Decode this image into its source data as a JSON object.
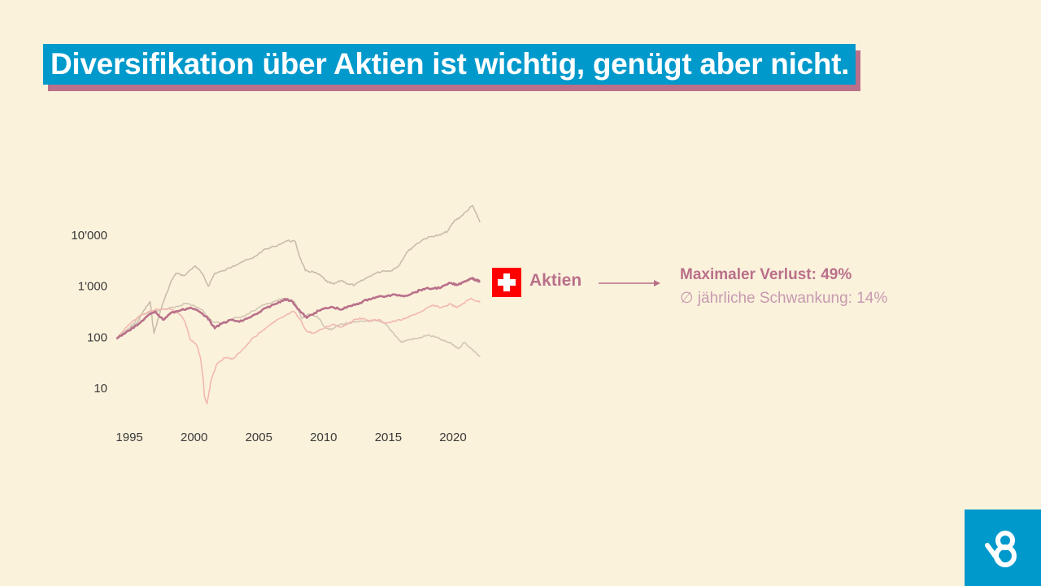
{
  "slide": {
    "title": "Diversifikation über Aktien ist wichtig, genügt aber nicht.",
    "series_label": "Aktien",
    "stat_max_loss": "Maximaler Verlust: 49%",
    "stat_volatility": "∅ jährliche Schwankung: 14%"
  },
  "colors": {
    "background": "#fbf2dc",
    "title_bg": "#0099cc",
    "accent": "#b9708a",
    "grey_series": "#c9bdaa",
    "pink_series": "#f2b8b0",
    "flag_red": "#ff0000",
    "logo_bg": "#0099cc"
  },
  "icons": {
    "flag": "swiss-flag-icon",
    "logo": "brand-logo-icon",
    "arrow": "arrow-right-icon"
  },
  "chart_data": {
    "type": "line",
    "y_scale": "log",
    "ylim": [
      3,
      50000
    ],
    "xlim": [
      1993.8,
      2022.2
    ],
    "y_ticks": [
      10,
      100,
      1000,
      10000
    ],
    "y_tick_labels": [
      "10",
      "100",
      "1'000",
      "10'000"
    ],
    "x_ticks": [
      1995,
      2000,
      2005,
      2010,
      2015,
      2020
    ],
    "x_tick_labels": [
      "1995",
      "2000",
      "2005",
      "2010",
      "2015",
      "2020"
    ],
    "grid": false,
    "legend": "right, single highlighted series label",
    "series": [
      {
        "name": "",
        "highlight": false,
        "color": "#c9bdaa",
        "points": [
          [
            1994.0,
            95
          ],
          [
            1995.0,
            150
          ],
          [
            1995.6,
            190
          ],
          [
            1996.0,
            300
          ],
          [
            1996.6,
            500
          ],
          [
            1996.9,
            120
          ],
          [
            1997.5,
            400
          ],
          [
            1998.2,
            1200
          ],
          [
            1998.6,
            1800
          ],
          [
            1999.2,
            1600
          ],
          [
            2000.1,
            2500
          ],
          [
            2000.6,
            1800
          ],
          [
            2001.1,
            1000
          ],
          [
            2001.6,
            1800
          ],
          [
            2002.3,
            2000
          ],
          [
            2003.0,
            2500
          ],
          [
            2003.7,
            3000
          ],
          [
            2004.5,
            3500
          ],
          [
            2005.3,
            5000
          ],
          [
            2006.2,
            6000
          ],
          [
            2007.2,
            7800
          ],
          [
            2007.8,
            7500
          ],
          [
            2008.2,
            3500
          ],
          [
            2008.6,
            2000
          ],
          [
            2009.2,
            1900
          ],
          [
            2009.8,
            1600
          ],
          [
            2010.3,
            1200
          ],
          [
            2010.8,
            1100
          ],
          [
            2011.4,
            1300
          ],
          [
            2011.9,
            1100
          ],
          [
            2012.4,
            1050
          ],
          [
            2013.0,
            1300
          ],
          [
            2013.8,
            1700
          ],
          [
            2014.6,
            2000
          ],
          [
            2015.2,
            2000
          ],
          [
            2015.8,
            2500
          ],
          [
            2016.4,
            4500
          ],
          [
            2017.1,
            6500
          ],
          [
            2017.8,
            8500
          ],
          [
            2018.4,
            9500
          ],
          [
            2019.0,
            10000
          ],
          [
            2019.6,
            12000
          ],
          [
            2020.1,
            19000
          ],
          [
            2020.6,
            23000
          ],
          [
            2021.1,
            30000
          ],
          [
            2021.5,
            38000
          ],
          [
            2021.8,
            26000
          ],
          [
            2022.1,
            18000
          ]
        ]
      },
      {
        "name": "",
        "highlight": false,
        "color": "#d2c6b4",
        "points": [
          [
            1994.0,
            90
          ],
          [
            1995.0,
            150
          ],
          [
            1995.8,
            260
          ],
          [
            1996.7,
            320
          ],
          [
            1997.6,
            360
          ],
          [
            1998.5,
            380
          ],
          [
            1999.3,
            460
          ],
          [
            2000.0,
            420
          ],
          [
            2000.7,
            330
          ],
          [
            2001.4,
            200
          ],
          [
            2002.2,
            190
          ],
          [
            2003.0,
            230
          ],
          [
            2003.8,
            260
          ],
          [
            2004.6,
            330
          ],
          [
            2005.4,
            430
          ],
          [
            2006.3,
            520
          ],
          [
            2007.1,
            580
          ],
          [
            2007.8,
            480
          ],
          [
            2008.3,
            230
          ],
          [
            2008.8,
            280
          ],
          [
            2009.5,
            260
          ],
          [
            2010.1,
            160
          ],
          [
            2010.6,
            140
          ],
          [
            2011.3,
            180
          ],
          [
            2012.0,
            190
          ],
          [
            2012.7,
            200
          ],
          [
            2013.4,
            210
          ],
          [
            2014.1,
            210
          ],
          [
            2014.8,
            180
          ],
          [
            2015.4,
            120
          ],
          [
            2016.0,
            80
          ],
          [
            2016.6,
            90
          ],
          [
            2017.3,
            95
          ],
          [
            2018.0,
            110
          ],
          [
            2018.7,
            100
          ],
          [
            2019.3,
            85
          ],
          [
            2019.9,
            75
          ],
          [
            2020.4,
            60
          ],
          [
            2020.9,
            80
          ],
          [
            2021.4,
            60
          ],
          [
            2022.1,
            42
          ]
        ]
      },
      {
        "name": "",
        "highlight": false,
        "color": "#f2b8b0",
        "points": [
          [
            1994.0,
            95
          ],
          [
            1995.0,
            180
          ],
          [
            1996.0,
            280
          ],
          [
            1997.0,
            350
          ],
          [
            1998.0,
            360
          ],
          [
            1998.8,
            300
          ],
          [
            1999.3,
            200
          ],
          [
            1999.7,
            90
          ],
          [
            2000.2,
            70
          ],
          [
            2000.5,
            40
          ],
          [
            2000.7,
            15
          ],
          [
            2000.8,
            7
          ],
          [
            2001.0,
            5
          ],
          [
            2001.3,
            14
          ],
          [
            2001.7,
            28
          ],
          [
            2002.3,
            40
          ],
          [
            2003.0,
            38
          ],
          [
            2003.8,
            60
          ],
          [
            2004.6,
            100
          ],
          [
            2005.4,
            140
          ],
          [
            2006.2,
            200
          ],
          [
            2007.0,
            260
          ],
          [
            2007.7,
            320
          ],
          [
            2008.2,
            220
          ],
          [
            2008.7,
            130
          ],
          [
            2009.3,
            120
          ],
          [
            2010.0,
            150
          ],
          [
            2010.7,
            180
          ],
          [
            2011.4,
            160
          ],
          [
            2012.1,
            200
          ],
          [
            2012.8,
            240
          ],
          [
            2013.5,
            210
          ],
          [
            2014.2,
            220
          ],
          [
            2014.9,
            190
          ],
          [
            2015.6,
            210
          ],
          [
            2016.3,
            230
          ],
          [
            2017.0,
            280
          ],
          [
            2017.7,
            330
          ],
          [
            2018.4,
            420
          ],
          [
            2019.1,
            380
          ],
          [
            2019.8,
            450
          ],
          [
            2020.3,
            380
          ],
          [
            2020.8,
            460
          ],
          [
            2021.4,
            580
          ],
          [
            2022.1,
            480
          ]
        ]
      },
      {
        "name": "Aktien",
        "highlight": true,
        "color": "#b9708a",
        "points": [
          [
            1994.0,
            95
          ],
          [
            1994.8,
            130
          ],
          [
            1995.6,
            170
          ],
          [
            1996.3,
            250
          ],
          [
            1997.0,
            320
          ],
          [
            1997.6,
            220
          ],
          [
            1998.2,
            300
          ],
          [
            1999.0,
            340
          ],
          [
            1999.7,
            380
          ],
          [
            2000.3,
            330
          ],
          [
            2001.0,
            250
          ],
          [
            2001.6,
            150
          ],
          [
            2002.2,
            190
          ],
          [
            2002.9,
            220
          ],
          [
            2003.5,
            200
          ],
          [
            2004.2,
            240
          ],
          [
            2004.9,
            290
          ],
          [
            2005.6,
            380
          ],
          [
            2006.3,
            450
          ],
          [
            2007.0,
            560
          ],
          [
            2007.6,
            500
          ],
          [
            2008.2,
            320
          ],
          [
            2008.7,
            240
          ],
          [
            2009.3,
            300
          ],
          [
            2010.0,
            360
          ],
          [
            2010.7,
            390
          ],
          [
            2011.4,
            350
          ],
          [
            2012.1,
            410
          ],
          [
            2012.8,
            470
          ],
          [
            2013.5,
            560
          ],
          [
            2014.2,
            620
          ],
          [
            2014.9,
            640
          ],
          [
            2015.6,
            680
          ],
          [
            2016.3,
            650
          ],
          [
            2017.0,
            750
          ],
          [
            2017.7,
            880
          ],
          [
            2018.4,
            900
          ],
          [
            2019.1,
            950
          ],
          [
            2019.8,
            1150
          ],
          [
            2020.3,
            1050
          ],
          [
            2020.9,
            1250
          ],
          [
            2021.5,
            1450
          ],
          [
            2021.8,
            1300
          ],
          [
            2022.1,
            1250
          ]
        ]
      }
    ]
  }
}
